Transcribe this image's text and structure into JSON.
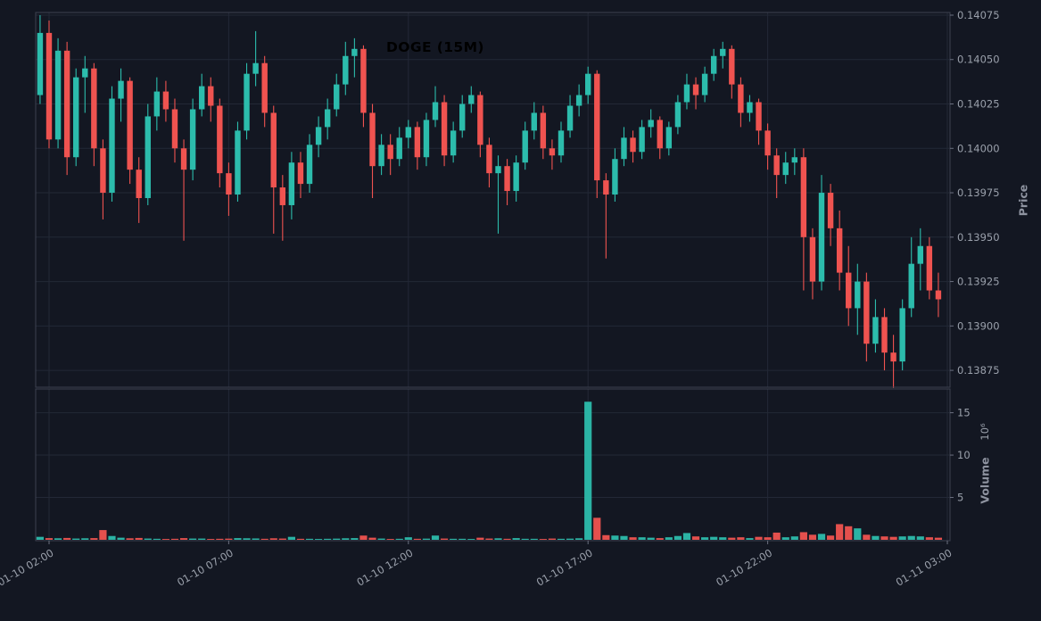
{
  "chart": {
    "title": "DOGE (15M)"
  },
  "axes": {
    "price_label": "Price",
    "volume_label": "Volume",
    "volume_scale": "10⁶"
  },
  "colors": {
    "background": "#131722",
    "up": "#2cbcac",
    "down": "#ef5350",
    "grid": "#232836",
    "spine": "#3d4250",
    "tick_mark": "#6b7080",
    "tick_text": "#9aa0ab",
    "axis_label_text": "#8e93a0",
    "title": "#000000"
  },
  "chart_data": {
    "type": "candlestick_with_volume",
    "symbol": "DOGE",
    "interval": "15M",
    "title": "DOGE (15M)",
    "ylabel_price": "Price",
    "ylabel_volume": "Volume",
    "volume_unit": "millions (×10⁶)",
    "grid": true,
    "legend": "none",
    "price_axis_side": "right",
    "price_range": [
      0.138655,
      0.140765
    ],
    "price_ticks": [
      0.14075,
      0.1405,
      0.14025,
      0.14,
      0.13975,
      0.1395,
      0.13925,
      0.139,
      0.13875
    ],
    "volume_range_millions": [
      0,
      17.8
    ],
    "volume_ticks": [
      5,
      10,
      15
    ],
    "x_tick_labels": [
      "01-10 02:00",
      "01-10 07:00",
      "01-10 12:00",
      "01-10 17:00",
      "01-10 22:00",
      "01-11 03:00"
    ],
    "x_tick_indices": [
      1,
      21,
      41,
      61,
      81,
      101
    ],
    "candles_format": [
      "open",
      "high",
      "low",
      "close",
      "volume_millions"
    ],
    "candles": [
      [
        0.1403,
        0.14075,
        0.14025,
        0.14065,
        0.35
      ],
      [
        0.14065,
        0.14072,
        0.14,
        0.14005,
        0.2
      ],
      [
        0.14005,
        0.14062,
        0.14,
        0.14055,
        0.18
      ],
      [
        0.14055,
        0.1406,
        0.13985,
        0.13995,
        0.22
      ],
      [
        0.13995,
        0.14045,
        0.1399,
        0.1404,
        0.15
      ],
      [
        0.1404,
        0.14052,
        0.1402,
        0.14045,
        0.18
      ],
      [
        0.14045,
        0.14048,
        0.1399,
        0.14,
        0.2
      ],
      [
        0.14,
        0.14005,
        0.1396,
        0.13975,
        1.15
      ],
      [
        0.13975,
        0.14035,
        0.1397,
        0.14028,
        0.45
      ],
      [
        0.14028,
        0.14045,
        0.14015,
        0.14038,
        0.25
      ],
      [
        0.14038,
        0.1404,
        0.1398,
        0.13988,
        0.18
      ],
      [
        0.13988,
        0.13995,
        0.13958,
        0.13972,
        0.22
      ],
      [
        0.13972,
        0.14025,
        0.13968,
        0.14018,
        0.15
      ],
      [
        0.14018,
        0.1404,
        0.1401,
        0.14032,
        0.12
      ],
      [
        0.14032,
        0.14038,
        0.14015,
        0.14022,
        0.1
      ],
      [
        0.14022,
        0.14028,
        0.13992,
        0.14,
        0.12
      ],
      [
        0.14,
        0.14005,
        0.13948,
        0.13988,
        0.2
      ],
      [
        0.13988,
        0.14028,
        0.13982,
        0.14022,
        0.15
      ],
      [
        0.14022,
        0.14042,
        0.14018,
        0.14035,
        0.15
      ],
      [
        0.14035,
        0.1404,
        0.14015,
        0.14024,
        0.1
      ],
      [
        0.14024,
        0.14028,
        0.13978,
        0.13986,
        0.12
      ],
      [
        0.13986,
        0.13992,
        0.13962,
        0.13974,
        0.14
      ],
      [
        0.13974,
        0.14015,
        0.1397,
        0.1401,
        0.2
      ],
      [
        0.1401,
        0.14048,
        0.14005,
        0.14042,
        0.18
      ],
      [
        0.14042,
        0.14066,
        0.14035,
        0.14048,
        0.16
      ],
      [
        0.14048,
        0.14052,
        0.14012,
        0.1402,
        0.12
      ],
      [
        0.1402,
        0.14024,
        0.13952,
        0.13978,
        0.18
      ],
      [
        0.13978,
        0.13985,
        0.13948,
        0.13968,
        0.15
      ],
      [
        0.13968,
        0.13998,
        0.1396,
        0.13992,
        0.35
      ],
      [
        0.13992,
        0.13998,
        0.13972,
        0.1398,
        0.12
      ],
      [
        0.1398,
        0.14008,
        0.13975,
        0.14002,
        0.12
      ],
      [
        0.14002,
        0.14018,
        0.13995,
        0.14012,
        0.1
      ],
      [
        0.14012,
        0.14028,
        0.14005,
        0.14022,
        0.12
      ],
      [
        0.14022,
        0.14042,
        0.14018,
        0.14036,
        0.14
      ],
      [
        0.14036,
        0.1406,
        0.1403,
        0.14052,
        0.18
      ],
      [
        0.14052,
        0.14062,
        0.1404,
        0.14056,
        0.2
      ],
      [
        0.14056,
        0.14058,
        0.14012,
        0.1402,
        0.5
      ],
      [
        0.1402,
        0.14025,
        0.13972,
        0.1399,
        0.25
      ],
      [
        0.1399,
        0.14008,
        0.13985,
        0.14002,
        0.15
      ],
      [
        0.14002,
        0.14008,
        0.13985,
        0.13994,
        0.1
      ],
      [
        0.13994,
        0.14012,
        0.1399,
        0.14006,
        0.12
      ],
      [
        0.14006,
        0.14016,
        0.14,
        0.14012,
        0.3
      ],
      [
        0.14012,
        0.14015,
        0.13988,
        0.13995,
        0.12
      ],
      [
        0.13995,
        0.1402,
        0.1399,
        0.14016,
        0.14
      ],
      [
        0.14016,
        0.14035,
        0.14012,
        0.14026,
        0.5
      ],
      [
        0.14026,
        0.1403,
        0.1399,
        0.13996,
        0.15
      ],
      [
        0.13996,
        0.14015,
        0.13992,
        0.1401,
        0.12
      ],
      [
        0.1401,
        0.1403,
        0.14006,
        0.14025,
        0.12
      ],
      [
        0.14025,
        0.14035,
        0.1402,
        0.1403,
        0.1
      ],
      [
        0.1403,
        0.14032,
        0.13995,
        0.14002,
        0.25
      ],
      [
        0.14002,
        0.14006,
        0.13978,
        0.13986,
        0.15
      ],
      [
        0.13986,
        0.13996,
        0.13952,
        0.1399,
        0.18
      ],
      [
        0.1399,
        0.13994,
        0.13968,
        0.13976,
        0.12
      ],
      [
        0.13976,
        0.13996,
        0.1397,
        0.13992,
        0.2
      ],
      [
        0.13992,
        0.14015,
        0.13988,
        0.1401,
        0.12
      ],
      [
        0.1401,
        0.14026,
        0.14005,
        0.1402,
        0.12
      ],
      [
        0.1402,
        0.14024,
        0.13994,
        0.14,
        0.1
      ],
      [
        0.14,
        0.14005,
        0.13988,
        0.13996,
        0.15
      ],
      [
        0.13996,
        0.14015,
        0.13992,
        0.1401,
        0.12
      ],
      [
        0.1401,
        0.1403,
        0.14006,
        0.14024,
        0.14
      ],
      [
        0.14024,
        0.14036,
        0.14018,
        0.1403,
        0.18
      ],
      [
        0.1403,
        0.14046,
        0.14025,
        0.14042,
        16.3
      ],
      [
        0.14042,
        0.14044,
        0.13972,
        0.13982,
        2.6
      ],
      [
        0.13982,
        0.13986,
        0.13938,
        0.13974,
        0.55
      ],
      [
        0.13974,
        0.14,
        0.1397,
        0.13994,
        0.5
      ],
      [
        0.13994,
        0.14012,
        0.1399,
        0.14006,
        0.45
      ],
      [
        0.14006,
        0.1401,
        0.13992,
        0.13998,
        0.3
      ],
      [
        0.13998,
        0.14016,
        0.13994,
        0.14012,
        0.3
      ],
      [
        0.14012,
        0.14022,
        0.14006,
        0.14016,
        0.25
      ],
      [
        0.14016,
        0.14018,
        0.13994,
        0.14,
        0.2
      ],
      [
        0.14,
        0.14015,
        0.13996,
        0.14012,
        0.3
      ],
      [
        0.14012,
        0.1403,
        0.14008,
        0.14026,
        0.45
      ],
      [
        0.14026,
        0.14042,
        0.14022,
        0.14036,
        0.8
      ],
      [
        0.14036,
        0.1404,
        0.14022,
        0.1403,
        0.4
      ],
      [
        0.1403,
        0.14046,
        0.14026,
        0.14042,
        0.3
      ],
      [
        0.14042,
        0.14056,
        0.14038,
        0.14052,
        0.35
      ],
      [
        0.14052,
        0.1406,
        0.14045,
        0.14056,
        0.3
      ],
      [
        0.14056,
        0.14058,
        0.14028,
        0.14036,
        0.25
      ],
      [
        0.14036,
        0.1404,
        0.14012,
        0.1402,
        0.3
      ],
      [
        0.1402,
        0.1403,
        0.14015,
        0.14026,
        0.2
      ],
      [
        0.14026,
        0.14028,
        0.14002,
        0.1401,
        0.35
      ],
      [
        0.1401,
        0.14014,
        0.13988,
        0.13996,
        0.3
      ],
      [
        0.13996,
        0.14,
        0.13972,
        0.13985,
        0.85
      ],
      [
        0.13985,
        0.13998,
        0.1398,
        0.13992,
        0.3
      ],
      [
        0.13992,
        0.14,
        0.13985,
        0.13995,
        0.4
      ],
      [
        0.13995,
        0.14,
        0.1392,
        0.1395,
        0.9
      ],
      [
        0.1395,
        0.13955,
        0.13915,
        0.13925,
        0.6
      ],
      [
        0.13925,
        0.13985,
        0.1392,
        0.13975,
        0.7
      ],
      [
        0.13975,
        0.1398,
        0.13945,
        0.13955,
        0.5
      ],
      [
        0.13955,
        0.13965,
        0.1392,
        0.1393,
        1.85
      ],
      [
        0.1393,
        0.13945,
        0.139,
        0.1391,
        1.6
      ],
      [
        0.1391,
        0.13935,
        0.13895,
        0.13925,
        1.35
      ],
      [
        0.13925,
        0.1393,
        0.1388,
        0.1389,
        0.6
      ],
      [
        0.1389,
        0.13915,
        0.13885,
        0.13905,
        0.45
      ],
      [
        0.13905,
        0.1391,
        0.13875,
        0.13885,
        0.4
      ],
      [
        0.13885,
        0.13895,
        0.13865,
        0.1388,
        0.35
      ],
      [
        0.1388,
        0.13915,
        0.13875,
        0.1391,
        0.4
      ],
      [
        0.1391,
        0.1395,
        0.13905,
        0.13935,
        0.45
      ],
      [
        0.13935,
        0.13955,
        0.1392,
        0.13945,
        0.4
      ],
      [
        0.13945,
        0.1395,
        0.13915,
        0.1392,
        0.3
      ],
      [
        0.1392,
        0.1393,
        0.13905,
        0.13915,
        0.25
      ]
    ]
  }
}
